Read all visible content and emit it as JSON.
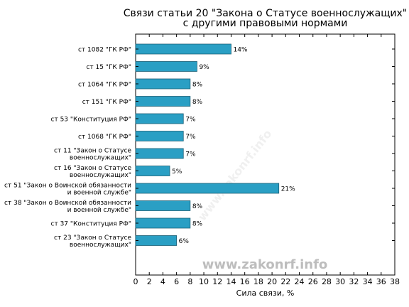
{
  "chart_data": {
    "type": "bar",
    "orientation": "horizontal",
    "title": [
      "Связи статьи 20 \"Закона о Статусе военнослужащих\"",
      "с другими правовыми нормами"
    ],
    "xlabel": "Сила связи, %",
    "xlim": [
      0,
      38
    ],
    "xticks": [
      0,
      2,
      4,
      6,
      8,
      10,
      12,
      14,
      16,
      18,
      20,
      22,
      24,
      26,
      28,
      30,
      32,
      34,
      36,
      38
    ],
    "grid": false,
    "bar_color": "#2a9fc4",
    "categories": [
      [
        "ст 1082 \"ГК РФ\""
      ],
      [
        "ст 15 \"ГК РФ\""
      ],
      [
        "ст 1064 \"ГК РФ\""
      ],
      [
        "ст 151 \"ГК РФ\""
      ],
      [
        "ст 53 \"Конституция РФ\""
      ],
      [
        "ст 1068 \"ГК РФ\""
      ],
      [
        "ст 11 \"Закон о Статусе",
        "военнослужащих\""
      ],
      [
        "ст 16 \"Закон о Статусе",
        "военнослужащих\""
      ],
      [
        "ст 51 \"Закон о Воинской обязанности",
        "и военной службе\""
      ],
      [
        "ст 38 \"Закон о Воинской обязанности",
        "и военной службе\""
      ],
      [
        "ст 37 \"Конституция РФ\""
      ],
      [
        "ст 23 \"Закон о Статусе",
        "военнослужащих\""
      ]
    ],
    "values": [
      14,
      9,
      8,
      8,
      7,
      7,
      7,
      5,
      21,
      8,
      8,
      6
    ],
    "value_labels": [
      "14%",
      "9%",
      "8%",
      "8%",
      "7%",
      "7%",
      "7%",
      "5%",
      "21%",
      "8%",
      "8%",
      "6%"
    ]
  },
  "watermark": "www.zakonrf.info",
  "watermark_diagonal": "www.zakonrf.info"
}
